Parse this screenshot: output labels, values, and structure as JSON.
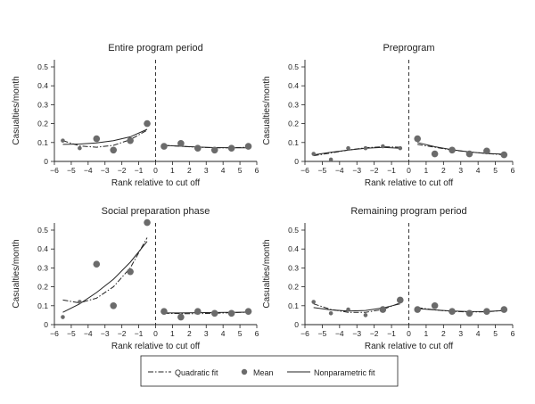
{
  "chart_data": [
    {
      "type": "scatter",
      "title": "Entire program period",
      "xlabel": "Rank relative to cut off",
      "ylabel": "Casualties/month",
      "xlim": [
        -6,
        6
      ],
      "ylim": [
        0,
        0.5
      ],
      "xticks": [
        -6,
        -5,
        -4,
        -3,
        -2,
        -1,
        0,
        1,
        2,
        3,
        4,
        5,
        6
      ],
      "yticks": [
        0,
        0.1,
        0.2,
        0.3,
        0.4,
        0.5
      ],
      "cutoff": 0,
      "mean_points": [
        {
          "x": -5.5,
          "y": 0.11,
          "size": "small"
        },
        {
          "x": -4.5,
          "y": 0.07,
          "size": "small"
        },
        {
          "x": -3.5,
          "y": 0.12,
          "size": "large"
        },
        {
          "x": -2.5,
          "y": 0.06,
          "size": "large"
        },
        {
          "x": -1.5,
          "y": 0.11,
          "size": "large"
        },
        {
          "x": -0.5,
          "y": 0.2,
          "size": "large"
        },
        {
          "x": 0.5,
          "y": 0.08,
          "size": "large"
        },
        {
          "x": 1.5,
          "y": 0.095,
          "size": "large"
        },
        {
          "x": 2.5,
          "y": 0.07,
          "size": "large"
        },
        {
          "x": 3.5,
          "y": 0.06,
          "size": "large"
        },
        {
          "x": 4.5,
          "y": 0.07,
          "size": "large"
        },
        {
          "x": 5.5,
          "y": 0.08,
          "size": "large"
        }
      ],
      "quadratic_fit": {
        "left": [
          {
            "x": -5.5,
            "y": 0.11
          },
          {
            "x": -4.5,
            "y": 0.082
          },
          {
            "x": -3.5,
            "y": 0.075
          },
          {
            "x": -2.5,
            "y": 0.085
          },
          {
            "x": -1.5,
            "y": 0.115
          },
          {
            "x": -0.5,
            "y": 0.165
          }
        ],
        "right": [
          {
            "x": 0.5,
            "y": 0.085
          },
          {
            "x": 1.5,
            "y": 0.08
          },
          {
            "x": 2.5,
            "y": 0.075
          },
          {
            "x": 3.5,
            "y": 0.072
          },
          {
            "x": 4.5,
            "y": 0.072
          },
          {
            "x": 5.5,
            "y": 0.075
          }
        ]
      },
      "nonparametric_fit": {
        "left": [
          {
            "x": -5.5,
            "y": 0.09
          },
          {
            "x": -4.5,
            "y": 0.092
          },
          {
            "x": -3.5,
            "y": 0.098
          },
          {
            "x": -2.5,
            "y": 0.11
          },
          {
            "x": -1.5,
            "y": 0.13
          },
          {
            "x": -0.5,
            "y": 0.17
          }
        ],
        "right": [
          {
            "x": 0.5,
            "y": 0.085
          },
          {
            "x": 1.5,
            "y": 0.08
          },
          {
            "x": 2.5,
            "y": 0.076
          },
          {
            "x": 3.5,
            "y": 0.073
          },
          {
            "x": 4.5,
            "y": 0.072
          },
          {
            "x": 5.5,
            "y": 0.072
          }
        ]
      }
    },
    {
      "type": "scatter",
      "title": "Preprogram",
      "xlabel": "Rank relative to cut off",
      "ylabel": "Casualties/month",
      "xlim": [
        -6,
        6
      ],
      "ylim": [
        0,
        0.5
      ],
      "xticks": [
        -6,
        -5,
        -4,
        -3,
        -2,
        -1,
        0,
        1,
        2,
        3,
        4,
        5,
        6
      ],
      "yticks": [
        0,
        0.1,
        0.2,
        0.3,
        0.4,
        0.5
      ],
      "cutoff": 0,
      "mean_points": [
        {
          "x": -5.5,
          "y": 0.04,
          "size": "small"
        },
        {
          "x": -4.5,
          "y": 0.01,
          "size": "small"
        },
        {
          "x": -3.5,
          "y": 0.07,
          "size": "small"
        },
        {
          "x": -2.5,
          "y": 0.07,
          "size": "small"
        },
        {
          "x": -1.5,
          "y": 0.08,
          "size": "small"
        },
        {
          "x": -0.5,
          "y": 0.07,
          "size": "small"
        },
        {
          "x": 0.5,
          "y": 0.12,
          "size": "large"
        },
        {
          "x": 1.5,
          "y": 0.04,
          "size": "large"
        },
        {
          "x": 2.5,
          "y": 0.06,
          "size": "large"
        },
        {
          "x": 3.5,
          "y": 0.04,
          "size": "large"
        },
        {
          "x": 4.5,
          "y": 0.055,
          "size": "large"
        },
        {
          "x": 5.5,
          "y": 0.035,
          "size": "large"
        }
      ],
      "quadratic_fit": {
        "left": [
          {
            "x": -5.5,
            "y": 0.03
          },
          {
            "x": -4.5,
            "y": 0.045
          },
          {
            "x": -3.5,
            "y": 0.06
          },
          {
            "x": -2.5,
            "y": 0.072
          },
          {
            "x": -1.5,
            "y": 0.078
          },
          {
            "x": -0.5,
            "y": 0.075
          }
        ],
        "right": [
          {
            "x": 0.5,
            "y": 0.09
          },
          {
            "x": 1.5,
            "y": 0.075
          },
          {
            "x": 2.5,
            "y": 0.06
          },
          {
            "x": 3.5,
            "y": 0.05
          },
          {
            "x": 4.5,
            "y": 0.042
          },
          {
            "x": 5.5,
            "y": 0.035
          }
        ]
      },
      "nonparametric_fit": {
        "left": [
          {
            "x": -5.5,
            "y": 0.035
          },
          {
            "x": -4.5,
            "y": 0.048
          },
          {
            "x": -3.5,
            "y": 0.06
          },
          {
            "x": -2.5,
            "y": 0.07
          },
          {
            "x": -1.5,
            "y": 0.074
          },
          {
            "x": -0.5,
            "y": 0.07
          }
        ],
        "right": [
          {
            "x": 0.5,
            "y": 0.1
          },
          {
            "x": 1.5,
            "y": 0.078
          },
          {
            "x": 2.5,
            "y": 0.062
          },
          {
            "x": 3.5,
            "y": 0.05
          },
          {
            "x": 4.5,
            "y": 0.042
          },
          {
            "x": 5.5,
            "y": 0.038
          }
        ]
      }
    },
    {
      "type": "scatter",
      "title": "Social preparation phase",
      "xlabel": "Rank relative to cut off",
      "ylabel": "Casualties/month",
      "xlim": [
        -6,
        6
      ],
      "ylim": [
        0,
        0.5
      ],
      "xticks": [
        -6,
        -5,
        -4,
        -3,
        -2,
        -1,
        0,
        1,
        2,
        3,
        4,
        5,
        6
      ],
      "yticks": [
        0,
        0.1,
        0.2,
        0.3,
        0.4,
        0.5
      ],
      "cutoff": 0,
      "mean_points": [
        {
          "x": -5.5,
          "y": 0.04,
          "size": "small"
        },
        {
          "x": -4.5,
          "y": 0.12,
          "size": "small"
        },
        {
          "x": -3.5,
          "y": 0.32,
          "size": "large"
        },
        {
          "x": -2.5,
          "y": 0.1,
          "size": "large"
        },
        {
          "x": -1.5,
          "y": 0.28,
          "size": "large"
        },
        {
          "x": -0.5,
          "y": 0.54,
          "size": "large"
        },
        {
          "x": 0.5,
          "y": 0.07,
          "size": "large"
        },
        {
          "x": 1.5,
          "y": 0.04,
          "size": "large"
        },
        {
          "x": 2.5,
          "y": 0.07,
          "size": "large"
        },
        {
          "x": 3.5,
          "y": 0.06,
          "size": "large"
        },
        {
          "x": 4.5,
          "y": 0.06,
          "size": "large"
        },
        {
          "x": 5.5,
          "y": 0.07,
          "size": "large"
        }
      ],
      "quadratic_fit": {
        "left": [
          {
            "x": -5.5,
            "y": 0.13
          },
          {
            "x": -4.5,
            "y": 0.115
          },
          {
            "x": -3.5,
            "y": 0.14
          },
          {
            "x": -2.5,
            "y": 0.2
          },
          {
            "x": -1.5,
            "y": 0.3
          },
          {
            "x": -0.5,
            "y": 0.46
          }
        ],
        "right": [
          {
            "x": 0.5,
            "y": 0.06
          },
          {
            "x": 1.5,
            "y": 0.058
          },
          {
            "x": 2.5,
            "y": 0.058
          },
          {
            "x": 3.5,
            "y": 0.06
          },
          {
            "x": 4.5,
            "y": 0.063
          },
          {
            "x": 5.5,
            "y": 0.066
          }
        ]
      },
      "nonparametric_fit": {
        "left": [
          {
            "x": -5.5,
            "y": 0.065
          },
          {
            "x": -4.5,
            "y": 0.11
          },
          {
            "x": -3.5,
            "y": 0.17
          },
          {
            "x": -2.5,
            "y": 0.24
          },
          {
            "x": -1.5,
            "y": 0.33
          },
          {
            "x": -0.5,
            "y": 0.44
          }
        ],
        "right": [
          {
            "x": 0.5,
            "y": 0.062
          },
          {
            "x": 1.5,
            "y": 0.062
          },
          {
            "x": 2.5,
            "y": 0.063
          },
          {
            "x": 3.5,
            "y": 0.064
          },
          {
            "x": 4.5,
            "y": 0.065
          },
          {
            "x": 5.5,
            "y": 0.066
          }
        ]
      }
    },
    {
      "type": "scatter",
      "title": "Remaining program period",
      "xlabel": "Rank relative to cut off",
      "ylabel": "Casualties/month",
      "xlim": [
        -6,
        6
      ],
      "ylim": [
        0,
        0.5
      ],
      "xticks": [
        -6,
        -5,
        -4,
        -3,
        -2,
        -1,
        0,
        1,
        2,
        3,
        4,
        5,
        6
      ],
      "yticks": [
        0,
        0.1,
        0.2,
        0.3,
        0.4,
        0.5
      ],
      "cutoff": 0,
      "mean_points": [
        {
          "x": -5.5,
          "y": 0.12,
          "size": "small"
        },
        {
          "x": -4.5,
          "y": 0.06,
          "size": "small"
        },
        {
          "x": -3.5,
          "y": 0.08,
          "size": "small"
        },
        {
          "x": -2.5,
          "y": 0.05,
          "size": "small"
        },
        {
          "x": -1.5,
          "y": 0.08,
          "size": "large"
        },
        {
          "x": -0.5,
          "y": 0.13,
          "size": "large"
        },
        {
          "x": 0.5,
          "y": 0.08,
          "size": "large"
        },
        {
          "x": 1.5,
          "y": 0.1,
          "size": "large"
        },
        {
          "x": 2.5,
          "y": 0.07,
          "size": "large"
        },
        {
          "x": 3.5,
          "y": 0.06,
          "size": "large"
        },
        {
          "x": 4.5,
          "y": 0.07,
          "size": "large"
        },
        {
          "x": 5.5,
          "y": 0.08,
          "size": "large"
        }
      ],
      "quadratic_fit": {
        "left": [
          {
            "x": -5.5,
            "y": 0.11
          },
          {
            "x": -4.5,
            "y": 0.08
          },
          {
            "x": -3.5,
            "y": 0.065
          },
          {
            "x": -2.5,
            "y": 0.065
          },
          {
            "x": -1.5,
            "y": 0.08
          },
          {
            "x": -0.5,
            "y": 0.115
          }
        ],
        "right": [
          {
            "x": 0.5,
            "y": 0.09
          },
          {
            "x": 1.5,
            "y": 0.078
          },
          {
            "x": 2.5,
            "y": 0.07
          },
          {
            "x": 3.5,
            "y": 0.067
          },
          {
            "x": 4.5,
            "y": 0.068
          },
          {
            "x": 5.5,
            "y": 0.075
          }
        ]
      },
      "nonparametric_fit": {
        "left": [
          {
            "x": -5.5,
            "y": 0.09
          },
          {
            "x": -4.5,
            "y": 0.078
          },
          {
            "x": -3.5,
            "y": 0.072
          },
          {
            "x": -2.5,
            "y": 0.075
          },
          {
            "x": -1.5,
            "y": 0.088
          },
          {
            "x": -0.5,
            "y": 0.11
          }
        ],
        "right": [
          {
            "x": 0.5,
            "y": 0.085
          },
          {
            "x": 1.5,
            "y": 0.078
          },
          {
            "x": 2.5,
            "y": 0.072
          },
          {
            "x": 3.5,
            "y": 0.069
          },
          {
            "x": 4.5,
            "y": 0.07
          },
          {
            "x": 5.5,
            "y": 0.074
          }
        ]
      }
    }
  ],
  "legend": {
    "placement": "bottom-center",
    "items": [
      {
        "key": "quadratic",
        "label": "Quadratic fit",
        "symbol": "dash-dot-line"
      },
      {
        "key": "mean",
        "label": "Mean",
        "symbol": "filled-circle"
      },
      {
        "key": "nonparametric",
        "label": "Nonparametric fit",
        "symbol": "solid-line"
      }
    ]
  },
  "colors": {
    "marker": "#6b6b6b",
    "line": "#222222",
    "axis": "#222222"
  }
}
